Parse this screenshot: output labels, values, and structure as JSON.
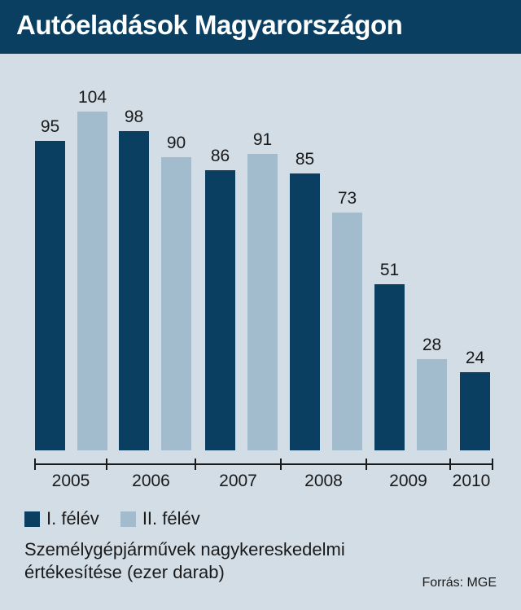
{
  "title": "Autóeladások Magyarországon",
  "colors": {
    "first_half": "#0b3f62",
    "second_half": "#a2bccd",
    "title_bg": "#0b3f62",
    "background": "#d3dde5"
  },
  "legend": {
    "first_half": "I. félév",
    "second_half": "II. félév"
  },
  "caption_line1": "Személygépjárművek nagykereskedelmi",
  "caption_line2": "értékesítése (ezer darab)",
  "source": "Forrás: MGE",
  "chart_data": {
    "type": "bar",
    "categories": [
      "2005",
      "2006",
      "2007",
      "2008",
      "2009",
      "2010"
    ],
    "series": [
      {
        "name": "I. félév",
        "values": [
          95,
          98,
          86,
          85,
          51,
          24
        ]
      },
      {
        "name": "II. félév",
        "values": [
          104,
          90,
          91,
          73,
          28,
          null
        ]
      }
    ],
    "ylim": [
      0,
      104
    ],
    "xlabel": "",
    "ylabel": ""
  }
}
